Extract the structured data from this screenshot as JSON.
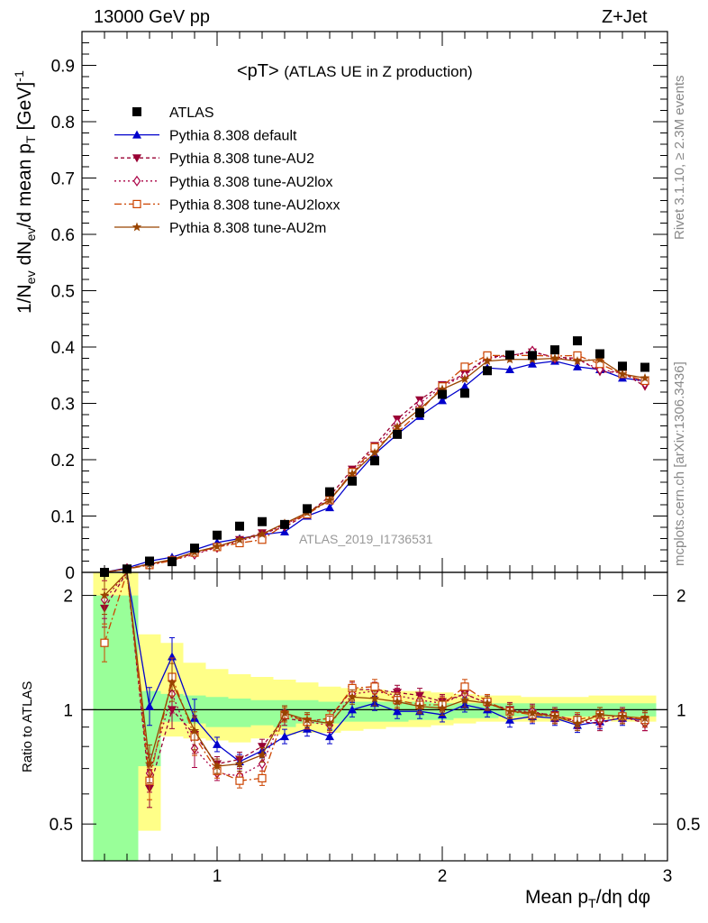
{
  "header": {
    "energy": "13000 GeV pp",
    "process": "Z+Jet"
  },
  "side_labels": {
    "rivet": "Rivet 3.1.10, ≥ 2.3M events",
    "mcplots": "mcplots.cern.ch [arXiv:1306.3436]"
  },
  "chart_data": {
    "type": "scatter",
    "title": "<pT>",
    "subtitle": "(ATLAS UE in Z production)",
    "watermark": "ATLAS_2019_I1736531",
    "ylabel": {
      "base": "1/N",
      "sub1": "ev",
      "mid1": " dN",
      "sub2": "ev",
      "mid2": "/d mean p",
      "sub3": "T",
      "mid3": " [GeV]",
      "sup": "-1"
    },
    "ratio_ylabel": "Ratio to ATLAS",
    "xlabel": {
      "base": "Mean p",
      "sub": "T",
      "rest": "/dη dφ"
    },
    "xlim": [
      0.4,
      3.0
    ],
    "ylim": [
      0,
      0.96
    ],
    "ratio_ylim": [
      0.4,
      2.3
    ],
    "ratio_log": true,
    "x_ticks": [
      "1",
      "2",
      "3"
    ],
    "y_ticks": [
      "0",
      "0.1",
      "0.2",
      "0.3",
      "0.4",
      "0.5",
      "0.6",
      "0.7",
      "0.8",
      "0.9"
    ],
    "ratio_ticks": [
      "0.5",
      "1",
      "2"
    ],
    "legend_position": "top-left",
    "x": [
      0.5,
      0.6,
      0.7,
      0.8,
      0.9,
      1.0,
      1.1,
      1.2,
      1.3,
      1.4,
      1.5,
      1.6,
      1.7,
      1.8,
      1.9,
      2.0,
      2.1,
      2.2,
      2.3,
      2.4,
      2.5,
      2.6,
      2.7,
      2.8,
      2.9
    ],
    "atlas": {
      "name": "ATLAS",
      "color": "#000000",
      "values": [
        0.0,
        0.006,
        0.02,
        0.019,
        0.043,
        0.066,
        0.082,
        0.09,
        0.085,
        0.113,
        0.143,
        0.162,
        0.198,
        0.245,
        0.283,
        0.316,
        0.318,
        0.358,
        0.386,
        0.385,
        0.395,
        0.411,
        0.388,
        0.366,
        0.364
      ]
    },
    "band_inner": [
      2.0,
      2.0,
      0.71,
      0.93,
      0.92,
      0.9,
      0.9,
      0.91,
      0.9,
      0.92,
      0.92,
      0.93,
      0.93,
      0.93,
      0.94,
      0.94,
      0.95,
      0.95,
      0.96,
      0.96,
      0.96,
      0.96,
      0.96,
      0.96,
      0.96
    ],
    "band_outer": [
      2.3,
      2.3,
      0.48,
      0.85,
      0.84,
      0.83,
      0.82,
      0.84,
      0.86,
      0.87,
      0.87,
      0.88,
      0.89,
      0.9,
      0.9,
      0.91,
      0.92,
      0.93,
      0.93,
      0.93,
      0.93,
      0.94,
      0.94,
      0.93,
      0.93
    ],
    "band_outer_up": [
      2.3,
      2.3,
      1.58,
      1.5,
      1.33,
      1.28,
      1.24,
      1.22,
      1.2,
      1.18,
      1.15,
      1.14,
      1.13,
      1.12,
      1.12,
      1.11,
      1.1,
      1.09,
      1.09,
      1.08,
      1.08,
      1.08,
      1.09,
      1.09,
      1.09
    ],
    "band_inner_up": [
      2.0,
      2.0,
      1.12,
      1.1,
      1.09,
      1.08,
      1.07,
      1.06,
      1.06,
      1.06,
      1.05,
      1.05,
      1.05,
      1.05,
      1.05,
      1.04,
      1.04,
      1.04,
      1.04,
      1.04,
      1.04,
      1.04,
      1.04,
      1.04,
      1.04
    ],
    "series": [
      {
        "name": "Pythia 8.308 default",
        "color": "#0000cc",
        "marker": "triangle-up",
        "dash": "",
        "values": [
          0.0,
          0.008,
          0.02,
          0.027,
          0.04,
          0.053,
          0.06,
          0.067,
          0.072,
          0.1,
          0.115,
          0.165,
          0.21,
          0.245,
          0.277,
          0.305,
          0.33,
          0.363,
          0.36,
          0.37,
          0.375,
          0.365,
          0.36,
          0.345,
          0.34
        ],
        "ratio": [
          2.6,
          2.6,
          1.02,
          1.38,
          0.95,
          0.81,
          0.73,
          0.78,
          0.85,
          0.89,
          0.85,
          1.0,
          1.04,
          0.99,
          0.99,
          0.97,
          1.03,
          1.0,
          0.94,
          0.96,
          0.95,
          0.91,
          0.93,
          0.95,
          0.94
        ]
      },
      {
        "name": "Pythia 8.308 tune-AU2",
        "color": "#990033",
        "marker": "triangle-down",
        "dash": "4,3",
        "values": [
          0.0,
          0.007,
          0.015,
          0.022,
          0.034,
          0.045,
          0.058,
          0.07,
          0.08,
          0.104,
          0.135,
          0.183,
          0.225,
          0.272,
          0.306,
          0.333,
          0.352,
          0.382,
          0.385,
          0.391,
          0.382,
          0.38,
          0.356,
          0.355,
          0.33
        ],
        "ratio": [
          1.85,
          2.6,
          0.62,
          1.0,
          0.86,
          0.72,
          0.74,
          0.8,
          0.95,
          0.93,
          0.95,
          1.13,
          1.13,
          1.11,
          1.09,
          1.05,
          1.1,
          1.04,
          1.0,
          0.98,
          0.97,
          0.93,
          0.92,
          0.96,
          0.92
        ]
      },
      {
        "name": "Pythia 8.308 tune-AU2lox",
        "color": "#aa0044",
        "marker": "diamond-open",
        "dash": "2,3",
        "values": [
          0.0,
          0.007,
          0.014,
          0.021,
          0.032,
          0.044,
          0.056,
          0.066,
          0.085,
          0.105,
          0.13,
          0.175,
          0.22,
          0.265,
          0.3,
          0.33,
          0.35,
          0.38,
          0.384,
          0.393,
          0.38,
          0.378,
          0.36,
          0.354,
          0.335
        ],
        "ratio": [
          1.95,
          2.6,
          0.68,
          1.1,
          0.79,
          0.68,
          0.67,
          0.72,
          0.98,
          0.93,
          0.91,
          1.1,
          1.12,
          1.09,
          1.06,
          1.04,
          1.1,
          1.04,
          0.99,
          0.99,
          0.96,
          0.93,
          0.94,
          0.97,
          0.92
        ]
      },
      {
        "name": "Pythia 8.308 tune-AU2loxx",
        "color": "#cc4400",
        "marker": "square-open",
        "dash": "8,3,2,3",
        "values": [
          0.0,
          0.006,
          0.013,
          0.021,
          0.035,
          0.045,
          0.052,
          0.058,
          0.085,
          0.103,
          0.128,
          0.178,
          0.222,
          0.248,
          0.285,
          0.33,
          0.365,
          0.385,
          0.385,
          0.385,
          0.384,
          0.385,
          0.37,
          0.352,
          0.34
        ],
        "ratio": [
          1.5,
          2.6,
          0.65,
          1.22,
          0.85,
          0.69,
          0.65,
          0.66,
          0.97,
          0.93,
          0.95,
          1.14,
          1.15,
          1.06,
          1.03,
          1.03,
          1.15,
          1.05,
          0.99,
          0.97,
          0.96,
          0.94,
          0.97,
          0.96,
          0.94
        ]
      },
      {
        "name": "Pythia 8.308 tune-AU2m",
        "color": "#994400",
        "marker": "star",
        "dash": "",
        "values": [
          0.0,
          0.006,
          0.015,
          0.023,
          0.036,
          0.046,
          0.058,
          0.068,
          0.087,
          0.106,
          0.128,
          0.175,
          0.212,
          0.258,
          0.29,
          0.325,
          0.343,
          0.375,
          0.378,
          0.378,
          0.38,
          0.375,
          0.378,
          0.352,
          0.345
        ],
        "ratio": [
          2.0,
          2.6,
          0.72,
          1.18,
          0.88,
          0.71,
          0.72,
          0.76,
          0.98,
          0.94,
          0.92,
          1.08,
          1.07,
          1.05,
          1.02,
          1.01,
          1.06,
          1.04,
          0.99,
          0.98,
          0.96,
          0.92,
          0.97,
          0.96,
          0.95
        ]
      }
    ]
  }
}
